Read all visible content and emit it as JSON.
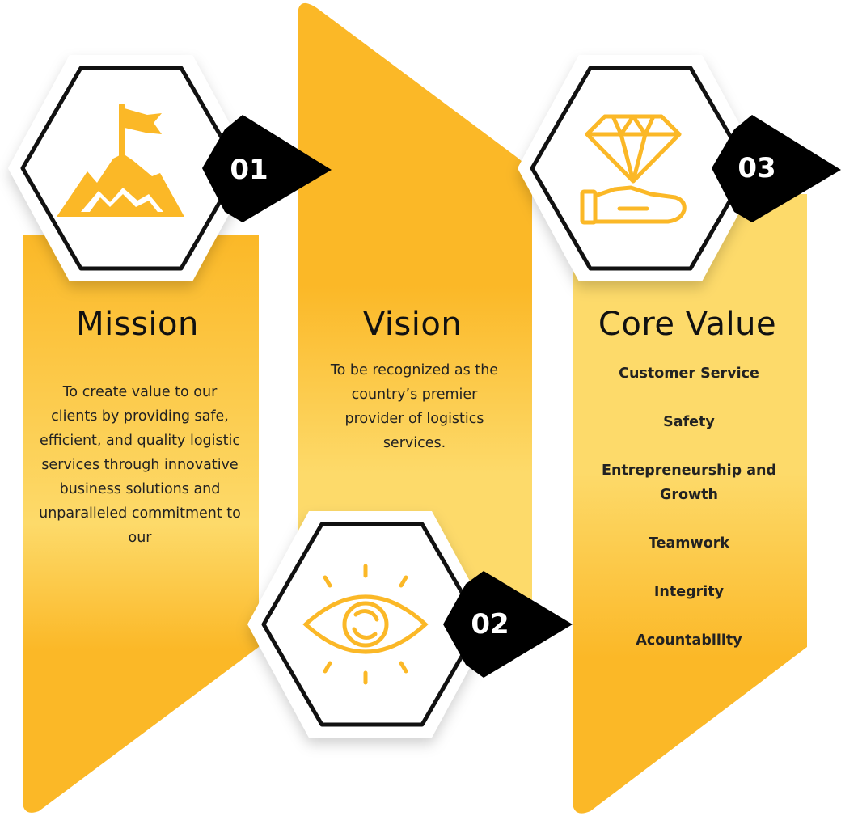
{
  "mission": {
    "number": "01",
    "title": "Mission",
    "text": "To create value to our clients by providing safe, efficient, and quality logistic services through innovative business solutions and unparalleled commitment to our",
    "icon": "mountain-flag-icon"
  },
  "vision": {
    "number": "02",
    "title": "Vision",
    "text": "To be recognized as the country’s premier provider of logistics services.",
    "icon": "eye-icon"
  },
  "core_value": {
    "number": "03",
    "title": "Core Value",
    "items": [
      "Customer Service",
      "Safety",
      "Entrepreneurship and Growth",
      "Teamwork",
      "Integrity",
      "Acountability"
    ],
    "icon": "diamond-hand-icon"
  },
  "colors": {
    "accent": "#FBB827",
    "accent_light": "#FDDA6A",
    "badge": "#000000",
    "hex_stroke": "#111111"
  }
}
